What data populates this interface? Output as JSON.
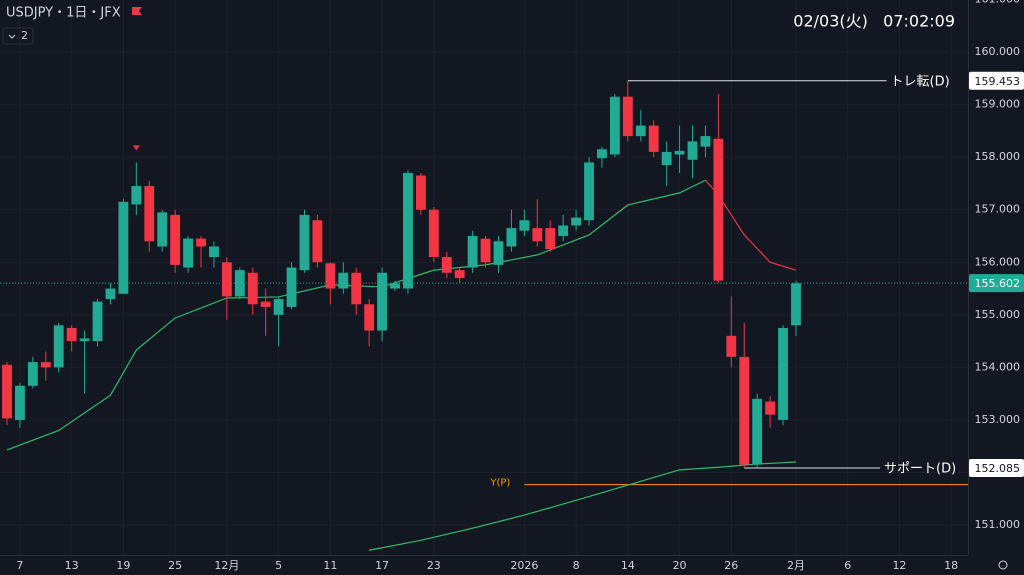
{
  "chart_data": {
    "type": "candlestick",
    "title": "USDJPY・1日・JFX",
    "indicator_count": "2",
    "clock": "02/03(火)   07:02:09",
    "up_color": "#22ab94",
    "down_color": "#f23645",
    "grid": true,
    "x": [
      0,
      1,
      2,
      3,
      4,
      5,
      6,
      7,
      8,
      9,
      10,
      11,
      12,
      13,
      14,
      15,
      16,
      17,
      18,
      19,
      20,
      21,
      22,
      23,
      24,
      25,
      26,
      27,
      28,
      29,
      30,
      31,
      32,
      33,
      34,
      35,
      36,
      37,
      38,
      39,
      40,
      41,
      42,
      43,
      44,
      45,
      46,
      47,
      48,
      49,
      50,
      51,
      52,
      53,
      54,
      55,
      56,
      57,
      58,
      59,
      60,
      61
    ],
    "open": [
      154.05,
      153.0,
      153.65,
      154.1,
      154.0,
      154.75,
      154.5,
      154.5,
      155.3,
      155.4,
      157.1,
      157.45,
      156.3,
      156.9,
      155.9,
      156.45,
      156.1,
      156.0,
      155.35,
      155.8,
      155.25,
      155.0,
      155.15,
      155.85,
      156.8,
      155.98,
      155.5,
      155.8,
      155.2,
      154.7,
      155.5,
      155.5,
      157.65,
      157.0,
      156.1,
      155.85,
      155.9,
      156.45,
      155.95,
      156.3,
      156.6,
      156.65,
      156.65,
      156.5,
      156.7,
      156.8,
      157.98,
      158.05,
      159.15,
      158.4,
      158.6,
      157.85,
      158.05,
      157.95,
      158.2,
      158.35,
      154.6,
      154.2,
      152.15,
      153.35,
      153.0,
      154.8
    ],
    "high": [
      154.1,
      153.7,
      154.2,
      154.3,
      154.85,
      154.8,
      154.7,
      155.3,
      155.6,
      157.2,
      157.9,
      157.55,
      157.0,
      157.0,
      156.5,
      156.5,
      156.4,
      156.1,
      155.9,
      155.9,
      155.5,
      155.35,
      156.0,
      157.0,
      156.9,
      156.0,
      156.0,
      155.9,
      155.3,
      155.9,
      155.65,
      157.75,
      157.7,
      157.05,
      156.2,
      155.9,
      156.6,
      156.5,
      156.5,
      157.0,
      157.0,
      157.2,
      156.8,
      156.9,
      157.0,
      158.0,
      158.2,
      159.2,
      159.45,
      158.9,
      158.7,
      158.3,
      158.6,
      158.6,
      158.6,
      159.2,
      155.35,
      154.85,
      153.5,
      153.45,
      154.8,
      155.65
    ],
    "low": [
      152.9,
      152.85,
      153.6,
      153.75,
      153.9,
      154.3,
      153.5,
      154.4,
      155.2,
      155.4,
      156.9,
      156.2,
      156.2,
      155.8,
      155.8,
      155.9,
      155.9,
      154.9,
      155.3,
      155.0,
      154.6,
      154.4,
      155.1,
      155.8,
      155.9,
      155.2,
      155.4,
      155.0,
      154.4,
      154.5,
      155.45,
      155.4,
      156.9,
      156.0,
      155.7,
      155.6,
      155.8,
      155.9,
      155.8,
      156.2,
      156.5,
      156.3,
      156.2,
      156.4,
      156.6,
      156.7,
      157.8,
      158.0,
      158.3,
      158.3,
      158.0,
      157.45,
      157.7,
      157.6,
      158.0,
      155.6,
      154.0,
      152.1,
      152.1,
      152.85,
      152.9,
      154.6
    ],
    "close": [
      153.03,
      153.65,
      154.1,
      154.0,
      154.8,
      154.5,
      154.55,
      155.25,
      155.5,
      157.15,
      157.45,
      156.4,
      156.95,
      155.95,
      156.45,
      156.3,
      156.3,
      155.35,
      155.85,
      155.2,
      155.15,
      155.3,
      155.9,
      156.9,
      156.0,
      155.5,
      155.8,
      155.2,
      154.7,
      155.8,
      155.6,
      157.7,
      157.0,
      156.1,
      155.8,
      155.7,
      156.5,
      156.0,
      156.4,
      156.65,
      156.8,
      156.4,
      156.25,
      156.7,
      156.85,
      157.9,
      158.15,
      159.15,
      158.4,
      158.6,
      158.1,
      158.1,
      158.12,
      158.3,
      158.4,
      155.65,
      154.2,
      152.15,
      153.4,
      153.1,
      154.75,
      155.6
    ],
    "ma_lines": [
      {
        "color": "#2ebd6b",
        "x": [
          0,
          4,
          8,
          10,
          13,
          17,
          21,
          25,
          29,
          33,
          37,
          41,
          45,
          48,
          52,
          54
        ],
        "values": [
          152.43,
          152.8,
          153.47,
          154.33,
          154.94,
          155.32,
          155.34,
          155.57,
          155.53,
          155.85,
          155.95,
          156.14,
          156.52,
          157.09,
          157.32,
          157.56
        ]
      },
      {
        "color": "#f23645",
        "x": [
          54,
          55,
          57,
          59,
          61
        ],
        "values": [
          157.56,
          157.28,
          156.52,
          156.0,
          155.85
        ]
      },
      {
        "color": "#2ebd6b",
        "x": [
          28,
          32,
          36,
          40,
          44,
          48,
          52,
          55,
          58,
          61
        ],
        "values": [
          150.52,
          150.71,
          150.94,
          151.19,
          151.47,
          151.76,
          152.05,
          152.1,
          152.16,
          152.2
        ]
      }
    ],
    "signal_markers": [
      10
    ],
    "levels": [
      {
        "label": "トレ転(D)",
        "value": 159.453,
        "value_label": "159.453",
        "x_range": [
          48,
          68
        ]
      },
      {
        "label": "サポート(D)",
        "value": 152.085,
        "value_label": "152.085",
        "x_range": [
          57,
          67.5
        ]
      }
    ],
    "prev_level": {
      "label": "Y(P)",
      "value": 151.77,
      "x_range": [
        40,
        74.3
      ]
    },
    "last_price": {
      "value": 155.602,
      "label": "155.602"
    },
    "xlim": [
      -0.54,
      74.3
    ],
    "ylim": [
      150.43,
      160.99
    ],
    "yticks": [
      {
        "value": 151,
        "label": "151.000"
      },
      {
        "value": 152,
        "label": "152.000"
      },
      {
        "value": 153,
        "label": "153.000"
      },
      {
        "value": 154,
        "label": "154.000"
      },
      {
        "value": 155,
        "label": "155.000"
      },
      {
        "value": 156,
        "label": "156.000"
      },
      {
        "value": 157,
        "label": "157.000"
      },
      {
        "value": 158,
        "label": "158.000"
      },
      {
        "value": 159,
        "label": "159.000"
      },
      {
        "value": 160,
        "label": "160.000"
      },
      {
        "value": 161,
        "label": "161.000"
      }
    ],
    "xticks": [
      {
        "value": 1,
        "label": "7"
      },
      {
        "value": 5,
        "label": "13"
      },
      {
        "value": 9,
        "label": "19"
      },
      {
        "value": 13,
        "label": "25"
      },
      {
        "value": 17,
        "label": "12月"
      },
      {
        "value": 21,
        "label": "5"
      },
      {
        "value": 25,
        "label": "11"
      },
      {
        "value": 29,
        "label": "17"
      },
      {
        "value": 33,
        "label": "23"
      },
      {
        "value": 40,
        "label": "2026"
      },
      {
        "value": 44,
        "label": "8"
      },
      {
        "value": 48,
        "label": "14"
      },
      {
        "value": 52,
        "label": "20"
      },
      {
        "value": 56,
        "label": "26"
      },
      {
        "value": 61,
        "label": "2月"
      },
      {
        "value": 65,
        "label": "6"
      },
      {
        "value": 69,
        "label": "12"
      },
      {
        "value": 73,
        "label": "18"
      }
    ]
  }
}
